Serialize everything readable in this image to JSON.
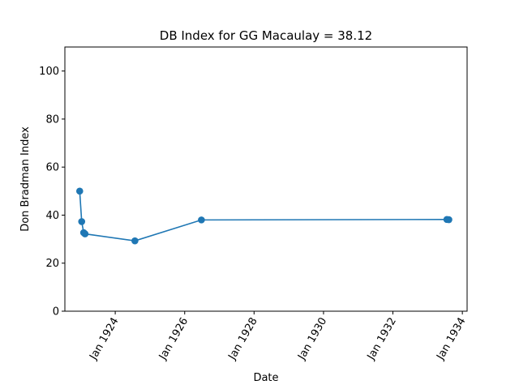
{
  "chart_data": {
    "type": "line",
    "title": "DB Index for GG Macaulay = 38.12",
    "xlabel": "Date",
    "ylabel": "Don Bradman Index",
    "ylim": [
      0,
      110
    ],
    "xlim": [
      "1922-07-20",
      "1934-02-20"
    ],
    "grid": false,
    "legend": "none",
    "color": "#1f77b4",
    "x_ticks": [
      "1924-01-01",
      "1926-01-01",
      "1928-01-01",
      "1930-01-01",
      "1932-01-01",
      "1934-01-01"
    ],
    "x_tick_labels": [
      "Jan 1924",
      "Jan 1926",
      "Jan 1928",
      "Jan 1930",
      "Jan 1932",
      "Jan 1934"
    ],
    "y_ticks": [
      0,
      20,
      40,
      60,
      80,
      100
    ],
    "y_tick_labels": [
      "0",
      "20",
      "40",
      "60",
      "80",
      "100"
    ],
    "series": [
      {
        "x": [
          "1922-12-23",
          "1923-01-13",
          "1923-02-03",
          "1923-02-17",
          "1924-07-26",
          "1926-06-26",
          "1933-07-22",
          "1933-08-12"
        ],
        "y": [
          50.0,
          37.3,
          32.7,
          32.2,
          29.3,
          38.0,
          38.2,
          38.12
        ]
      }
    ]
  }
}
